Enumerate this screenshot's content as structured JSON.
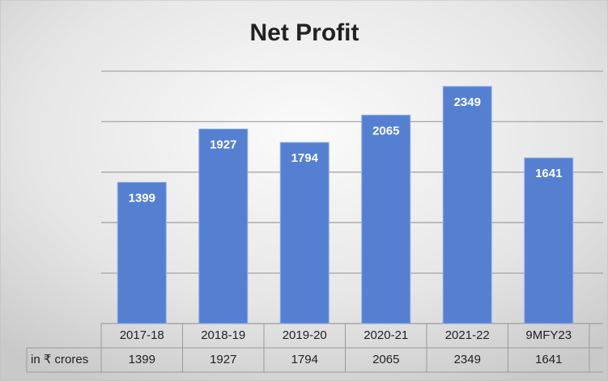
{
  "chart_data": {
    "type": "bar",
    "title": "Net Profit",
    "categories": [
      "2017-18",
      "2018-19",
      "2019-20",
      "2020-21",
      "2021-22",
      "9MFY23"
    ],
    "series": [
      {
        "name": "in ₹ crores",
        "color": "#5580d2",
        "values": [
          1399,
          1927,
          1794,
          2065,
          2349,
          1641
        ]
      }
    ],
    "ylim": [
      0,
      2500
    ],
    "yticks": [
      0,
      500,
      1000,
      1500,
      2000,
      2500
    ],
    "grid": true,
    "data_table": true
  }
}
